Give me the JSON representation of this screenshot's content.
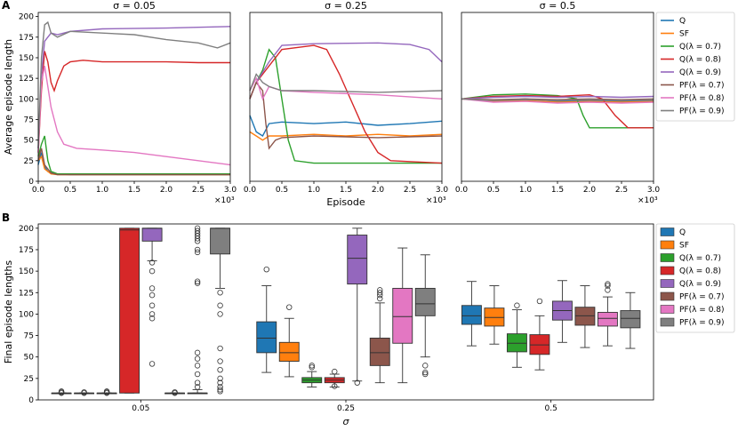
{
  "panels": {
    "a": "A",
    "b": "B"
  },
  "colors": {
    "Q": "#1f77b4",
    "SF": "#ff7f0e",
    "Q07": "#2ca02c",
    "Q08": "#d62728",
    "Q09": "#9467bd",
    "PF07": "#8c564b",
    "PF08": "#e377c2",
    "PF09": "#7f7f7f"
  },
  "legend": [
    "Q",
    "SF",
    "Q(λ = 0.7)",
    "Q(λ = 0.8)",
    "Q(λ = 0.9)",
    "PF(λ = 0.7)",
    "PF(λ = 0.8)",
    "PF(λ = 0.9)"
  ],
  "chart_data": [
    {
      "type": "line",
      "title": "σ = 0.05",
      "ylabel": "Average episode length",
      "xlabel": "",
      "x_multiplier": "×10³",
      "xlim": [
        0,
        3.0
      ],
      "ylim": [
        0,
        205
      ],
      "xticks": [
        "0.0",
        "0.5",
        "1.0",
        "1.5",
        "2.0",
        "2.5",
        "3.0"
      ],
      "yticks": [
        "0",
        "25",
        "50",
        "75",
        "100",
        "125",
        "150",
        "175",
        "200"
      ],
      "series": [
        {
          "name": "Q",
          "x": [
            0,
            0.05,
            0.1,
            0.15,
            0.25,
            0.5,
            3.0
          ],
          "y": [
            20,
            35,
            18,
            12,
            9,
            8,
            8
          ]
        },
        {
          "name": "SF",
          "x": [
            0,
            0.05,
            0.1,
            0.2,
            0.3,
            3.0
          ],
          "y": [
            25,
            30,
            15,
            9,
            8,
            8
          ]
        },
        {
          "name": "Q(λ = 0.7)",
          "x": [
            0,
            0.05,
            0.1,
            0.15,
            0.2,
            0.3,
            3.0
          ],
          "y": [
            30,
            45,
            55,
            25,
            12,
            9,
            9
          ]
        },
        {
          "name": "Q(λ = 0.8)",
          "x": [
            0,
            0.05,
            0.1,
            0.15,
            0.2,
            0.25,
            0.3,
            0.4,
            0.5,
            0.7,
            1.0,
            2.0,
            2.5,
            3.0
          ],
          "y": [
            35,
            110,
            158,
            145,
            120,
            110,
            122,
            140,
            145,
            147,
            145,
            145,
            144,
            144
          ]
        },
        {
          "name": "Q(λ = 0.9)",
          "x": [
            0,
            0.05,
            0.1,
            0.2,
            0.3,
            0.5,
            1.0,
            2.0,
            2.5,
            3.0
          ],
          "y": [
            40,
            130,
            170,
            180,
            178,
            182,
            185,
            186,
            187,
            188
          ]
        },
        {
          "name": "PF(λ = 0.7)",
          "x": [
            0,
            0.05,
            0.1,
            0.2,
            0.3,
            3.0
          ],
          "y": [
            25,
            40,
            20,
            10,
            8,
            8
          ]
        },
        {
          "name": "PF(λ = 0.8)",
          "x": [
            0,
            0.05,
            0.1,
            0.15,
            0.2,
            0.3,
            0.4,
            0.6,
            1.0,
            1.5,
            2.0,
            2.5,
            3.0
          ],
          "y": [
            35,
            120,
            140,
            115,
            90,
            60,
            45,
            40,
            38,
            35,
            30,
            25,
            20
          ]
        },
        {
          "name": "PF(λ = 0.9)",
          "x": [
            0,
            0.05,
            0.1,
            0.15,
            0.2,
            0.3,
            0.5,
            1.0,
            1.5,
            2.0,
            2.5,
            2.8,
            3.0
          ],
          "y": [
            40,
            150,
            190,
            193,
            180,
            175,
            182,
            180,
            178,
            172,
            168,
            162,
            168
          ]
        }
      ]
    },
    {
      "type": "line",
      "title": "σ = 0.25",
      "ylabel": "",
      "xlabel": "Episode",
      "x_multiplier": "×10³",
      "xlim": [
        0,
        3.0
      ],
      "ylim": [
        0,
        205
      ],
      "xticks": [
        "0.0",
        "0.5",
        "1.0",
        "1.5",
        "2.0",
        "2.5",
        "3.0"
      ],
      "series": [
        {
          "name": "Q",
          "x": [
            0,
            0.1,
            0.2,
            0.3,
            0.5,
            1.0,
            1.5,
            2.0,
            2.5,
            3.0
          ],
          "y": [
            80,
            60,
            55,
            70,
            72,
            70,
            72,
            68,
            70,
            73
          ]
        },
        {
          "name": "SF",
          "x": [
            0,
            0.1,
            0.2,
            0.3,
            0.5,
            1.0,
            1.5,
            2.0,
            2.5,
            3.0
          ],
          "y": [
            60,
            55,
            50,
            55,
            55,
            57,
            55,
            57,
            55,
            57
          ]
        },
        {
          "name": "Q(λ = 0.7)",
          "x": [
            0,
            0.1,
            0.2,
            0.3,
            0.4,
            0.5,
            0.6,
            0.7,
            1.0,
            2.0,
            3.0
          ],
          "y": [
            100,
            120,
            135,
            160,
            150,
            100,
            50,
            25,
            22,
            22,
            22
          ]
        },
        {
          "name": "Q(λ = 0.8)",
          "x": [
            0,
            0.1,
            0.3,
            0.5,
            1.0,
            1.2,
            1.4,
            1.6,
            1.8,
            2.0,
            2.2,
            3.0
          ],
          "y": [
            100,
            120,
            140,
            160,
            165,
            160,
            130,
            95,
            60,
            35,
            25,
            22
          ]
        },
        {
          "name": "Q(λ = 0.9)",
          "x": [
            0,
            0.1,
            0.3,
            0.5,
            1.0,
            2.0,
            2.5,
            2.8,
            3.0
          ],
          "y": [
            100,
            120,
            145,
            165,
            167,
            168,
            166,
            160,
            145
          ]
        },
        {
          "name": "PF(λ = 0.7)",
          "x": [
            0,
            0.1,
            0.2,
            0.25,
            0.3,
            0.4,
            0.5,
            1.0,
            2.0,
            3.0
          ],
          "y": [
            100,
            120,
            110,
            70,
            40,
            50,
            53,
            55,
            53,
            55
          ]
        },
        {
          "name": "PF(λ = 0.8)",
          "x": [
            0,
            0.1,
            0.2,
            0.3,
            0.5,
            1.0,
            2.0,
            3.0
          ],
          "y": [
            110,
            125,
            100,
            115,
            110,
            108,
            105,
            100
          ]
        },
        {
          "name": "PF(λ = 0.9)",
          "x": [
            0,
            0.1,
            0.2,
            0.3,
            0.5,
            1.0,
            2.0,
            3.0
          ],
          "y": [
            110,
            130,
            120,
            115,
            110,
            110,
            108,
            110
          ]
        }
      ]
    },
    {
      "type": "line",
      "title": "σ = 0.5",
      "ylabel": "",
      "xlabel": "",
      "x_multiplier": "×10³",
      "xlim": [
        0,
        3.0
      ],
      "ylim": [
        0,
        205
      ],
      "xticks": [
        "0.0",
        "0.5",
        "1.0",
        "1.5",
        "2.0",
        "2.5",
        "3.0"
      ],
      "series": [
        {
          "name": "Q",
          "x": [
            0,
            0.5,
            1.0,
            1.5,
            2.0,
            2.5,
            3.0
          ],
          "y": [
            100,
            98,
            100,
            97,
            98,
            97,
            98
          ]
        },
        {
          "name": "SF",
          "x": [
            0,
            0.5,
            1.0,
            1.5,
            2.0,
            2.5,
            3.0
          ],
          "y": [
            100,
            97,
            98,
            96,
            97,
            96,
            97
          ]
        },
        {
          "name": "Q(λ = 0.7)",
          "x": [
            0,
            0.5,
            1.0,
            1.5,
            1.8,
            1.9,
            2.0,
            2.5,
            3.0
          ],
          "y": [
            100,
            105,
            106,
            104,
            100,
            80,
            65,
            65,
            65
          ]
        },
        {
          "name": "Q(λ = 0.8)",
          "x": [
            0,
            0.5,
            1.0,
            1.5,
            2.0,
            2.2,
            2.4,
            2.6,
            3.0
          ],
          "y": [
            100,
            103,
            104,
            103,
            105,
            100,
            80,
            65,
            65
          ]
        },
        {
          "name": "Q(λ = 0.9)",
          "x": [
            0,
            0.5,
            1.0,
            1.5,
            2.0,
            2.5,
            3.0
          ],
          "y": [
            100,
            102,
            103,
            102,
            103,
            102,
            103
          ]
        },
        {
          "name": "PF(λ = 0.7)",
          "x": [
            0,
            0.5,
            1.0,
            1.5,
            2.0,
            2.5,
            3.0
          ],
          "y": [
            100,
            99,
            100,
            99,
            100,
            99,
            100
          ]
        },
        {
          "name": "PF(λ = 0.8)",
          "x": [
            0,
            0.5,
            1.0,
            1.5,
            2.0,
            2.5,
            3.0
          ],
          "y": [
            100,
            96,
            97,
            95,
            96,
            95,
            96
          ]
        },
        {
          "name": "PF(λ = 0.9)",
          "x": [
            0,
            0.5,
            1.0,
            1.5,
            2.0,
            2.5,
            3.0
          ],
          "y": [
            100,
            98,
            99,
            98,
            99,
            98,
            99
          ]
        }
      ]
    },
    {
      "type": "box",
      "title": "",
      "xlabel": "σ",
      "ylabel": "Final episode lengths",
      "categories": [
        "0.05",
        "0.25",
        "0.5"
      ],
      "ylim": [
        0,
        205
      ],
      "yticks": [
        "0",
        "25",
        "50",
        "75",
        "100",
        "125",
        "150",
        "175",
        "200"
      ],
      "groups": [
        {
          "category": "0.05",
          "boxes": [
            {
              "name": "Q",
              "min": 8,
              "q1": 8,
              "median": 8,
              "q3": 8,
              "max": 8,
              "fliers": [
                8,
                9,
                10
              ]
            },
            {
              "name": "SF",
              "min": 8,
              "q1": 8,
              "median": 8,
              "q3": 8,
              "max": 8,
              "fliers": [
                8,
                9
              ]
            },
            {
              "name": "Q(λ = 0.7)",
              "min": 8,
              "q1": 8,
              "median": 8,
              "q3": 8,
              "max": 8,
              "fliers": [
                8,
                9,
                10
              ]
            },
            {
              "name": "Q(λ = 0.8)",
              "min": 8,
              "q1": 8,
              "median": 198,
              "q3": 200,
              "max": 200,
              "fliers": []
            },
            {
              "name": "Q(λ = 0.9)",
              "min": 162,
              "q1": 185,
              "median": 200,
              "q3": 200,
              "max": 200,
              "fliers": [
                150,
                130,
                122,
                110,
                100,
                95,
                42,
                160
              ]
            },
            {
              "name": "PF(λ = 0.7)",
              "min": 8,
              "q1": 8,
              "median": 8,
              "q3": 8,
              "max": 8,
              "fliers": [
                8,
                9
              ]
            },
            {
              "name": "PF(λ = 0.8)",
              "min": 8,
              "q1": 8,
              "median": 8,
              "q3": 8,
              "max": 12,
              "fliers": [
                200,
                197,
                194,
                191,
                188,
                185,
                175,
                172,
                138,
                136,
                55,
                48,
                40,
                30,
                20,
                15
              ]
            },
            {
              "name": "PF(λ = 0.9)",
              "min": 130,
              "q1": 170,
              "median": 200,
              "q3": 200,
              "max": 200,
              "fliers": [
                125,
                110,
                100,
                60,
                45,
                35,
                25,
                20,
                15,
                12,
                10
              ]
            }
          ]
        },
        {
          "category": "0.25",
          "boxes": [
            {
              "name": "Q",
              "min": 32,
              "q1": 55,
              "median": 72,
              "q3": 91,
              "max": 133,
              "fliers": [
                152
              ]
            },
            {
              "name": "SF",
              "min": 27,
              "q1": 45,
              "median": 55,
              "q3": 67,
              "max": 95,
              "fliers": [
                108
              ]
            },
            {
              "name": "Q(λ = 0.7)",
              "min": 15,
              "q1": 20,
              "median": 23,
              "q3": 26,
              "max": 33,
              "fliers": [
                38,
                40
              ]
            },
            {
              "name": "Q(λ = 0.8)",
              "min": 15,
              "q1": 20,
              "median": 23,
              "q3": 26,
              "max": 30,
              "fliers": [
                33,
                16
              ]
            },
            {
              "name": "Q(λ = 0.9)",
              "min": 22,
              "q1": 135,
              "median": 165,
              "q3": 192,
              "max": 200,
              "fliers": [
                20
              ]
            },
            {
              "name": "PF(λ = 0.7)",
              "min": 20,
              "q1": 40,
              "median": 55,
              "q3": 72,
              "max": 113,
              "fliers": [
                118,
                122,
                125,
                128
              ]
            },
            {
              "name": "PF(λ = 0.8)",
              "min": 20,
              "q1": 66,
              "median": 97,
              "q3": 130,
              "max": 177,
              "fliers": []
            },
            {
              "name": "PF(λ = 0.9)",
              "min": 50,
              "q1": 98,
              "median": 112,
              "q3": 130,
              "max": 169,
              "fliers": [
                40,
                32,
                30
              ]
            }
          ]
        },
        {
          "category": "0.5",
          "boxes": [
            {
              "name": "Q",
              "min": 63,
              "q1": 88,
              "median": 98,
              "q3": 110,
              "max": 138,
              "fliers": []
            },
            {
              "name": "SF",
              "min": 65,
              "q1": 86,
              "median": 96,
              "q3": 107,
              "max": 133,
              "fliers": []
            },
            {
              "name": "Q(λ = 0.7)",
              "min": 38,
              "q1": 56,
              "median": 66,
              "q3": 77,
              "max": 105,
              "fliers": [
                110
              ]
            },
            {
              "name": "Q(λ = 0.8)",
              "min": 35,
              "q1": 53,
              "median": 64,
              "q3": 76,
              "max": 98,
              "fliers": [
                115
              ]
            },
            {
              "name": "Q(λ = 0.9)",
              "min": 67,
              "q1": 93,
              "median": 104,
              "q3": 115,
              "max": 139,
              "fliers": []
            },
            {
              "name": "PF(λ = 0.7)",
              "min": 61,
              "q1": 87,
              "median": 98,
              "q3": 108,
              "max": 133,
              "fliers": []
            },
            {
              "name": "PF(λ = 0.8)",
              "min": 63,
              "q1": 86,
              "median": 95,
              "q3": 102,
              "max": 120,
              "fliers": [
                128,
                133,
                135
              ]
            },
            {
              "name": "PF(λ = 0.9)",
              "min": 60,
              "q1": 84,
              "median": 95,
              "q3": 104,
              "max": 125,
              "fliers": []
            }
          ]
        }
      ]
    }
  ]
}
